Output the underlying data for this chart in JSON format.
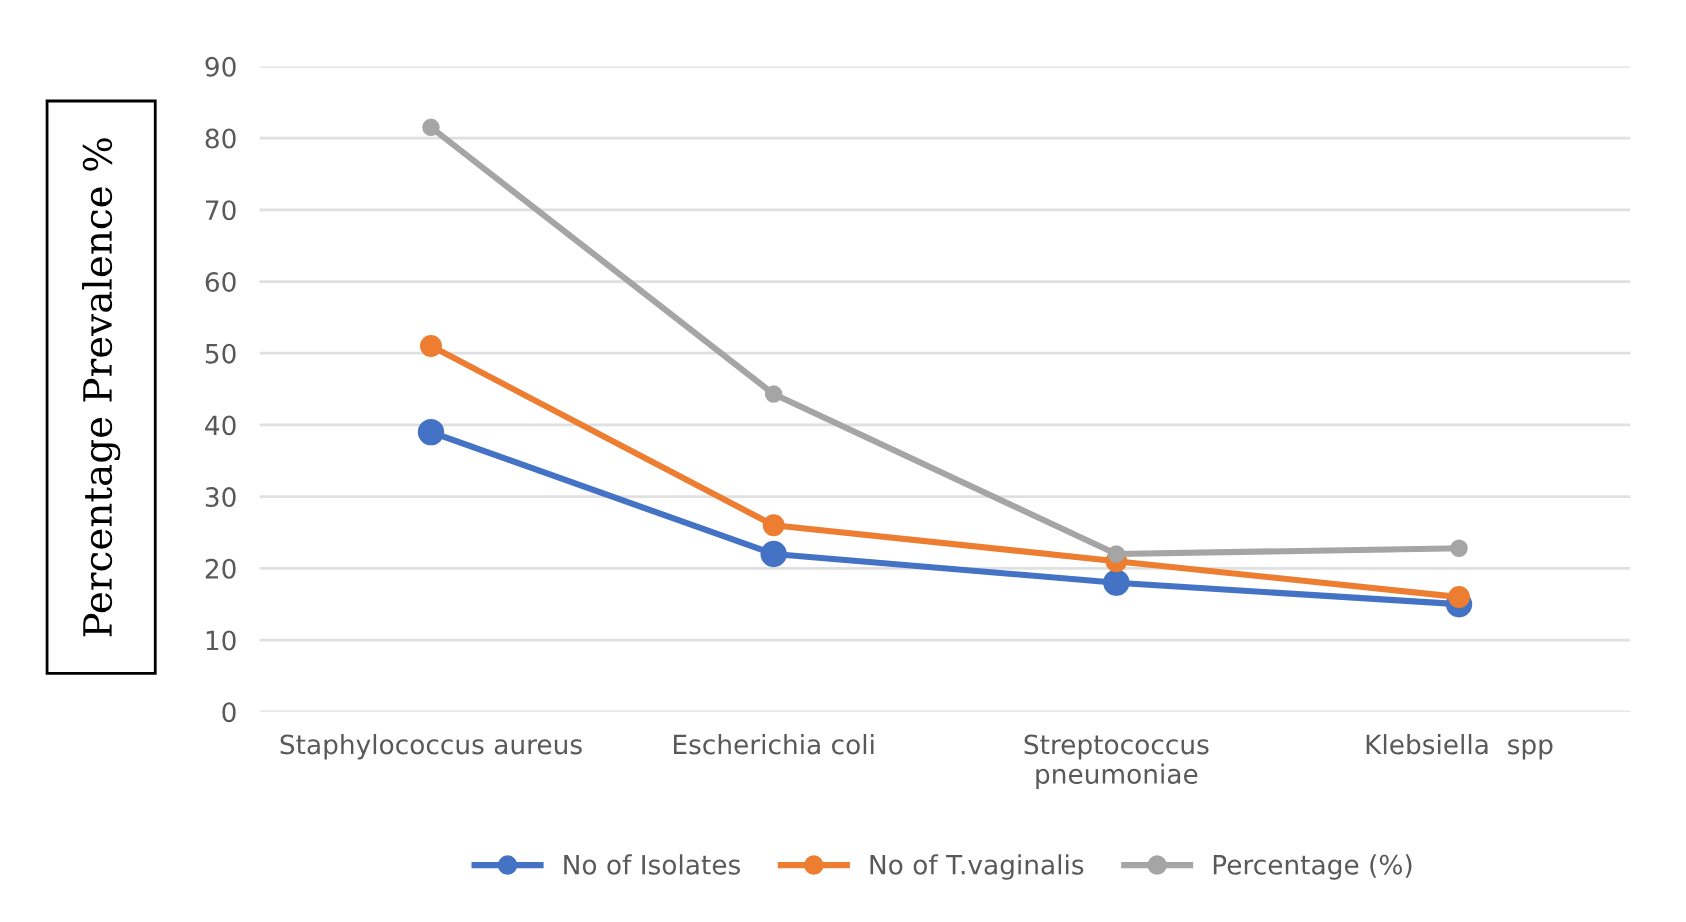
{
  "chart_data": {
    "type": "line",
    "ylabel": "Percentage Prevalence %",
    "categories": [
      "Staphylococcus aureus",
      "Escherichia coli",
      "Streptococcus\npneumoniae",
      "Klebsiella  spp"
    ],
    "series": [
      {
        "name": "No of Isolates",
        "color": "#4472c4",
        "values": [
          39,
          22,
          18,
          15
        ]
      },
      {
        "name": "No of T.vaginalis",
        "color": "#ed7d31",
        "values": [
          51,
          26,
          21,
          16
        ]
      },
      {
        "name": "Percentage (%)",
        "color": "#a5a5a5",
        "values": [
          81.5,
          44.3,
          22,
          22.8
        ]
      }
    ],
    "ylim": [
      0,
      90
    ],
    "yticks": [
      0,
      10,
      20,
      30,
      40,
      50,
      60,
      70,
      80,
      90
    ],
    "grid": "y",
    "legend": "bottom",
    "marker": "circle",
    "line_style": "solid"
  }
}
